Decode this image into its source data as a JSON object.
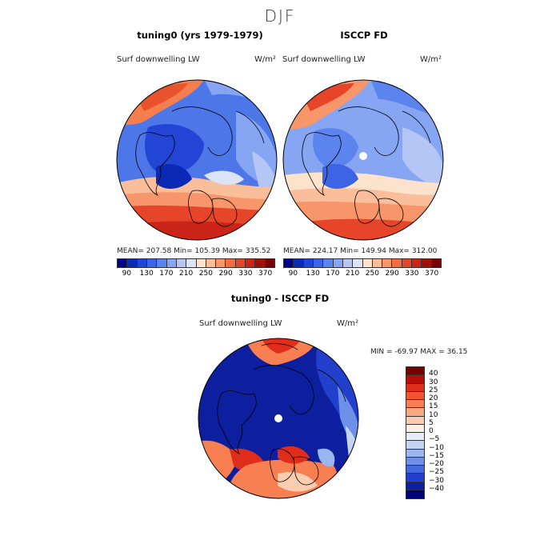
{
  "figure": {
    "season": "DJF",
    "panels": [
      {
        "title": "tuning0 (yrs 1979-1979)",
        "field_label": "Surf downwelling LW",
        "units": "W/m²",
        "stats": "MEAN= 207.58   Min= 105.39   Max= 335.52"
      },
      {
        "title": "ISCCP FD",
        "field_label": "Surf downwelling LW",
        "units": "W/m²",
        "stats": "MEAN= 224.17   Min= 149.94   Max= 312.00"
      }
    ],
    "abs_colorbar": {
      "colors": [
        "#00008b",
        "#0a2ab5",
        "#2345d6",
        "#3d64e6",
        "#5c84ee",
        "#86a5f2",
        "#b3c6f5",
        "#dbe4f7",
        "#fde2cc",
        "#fbbe9b",
        "#f8966b",
        "#f26b42",
        "#e6452a",
        "#cc2419",
        "#a00f0a",
        "#7a0000"
      ],
      "labels": [
        "90",
        "130",
        "170",
        "210",
        "250",
        "290",
        "330",
        "370"
      ]
    },
    "diff_panel": {
      "title": "tuning0 - ISCCP FD",
      "field_label": "Surf downwelling LW",
      "units": "W/m²",
      "stats": "MIN = -69.97 MAX =  36.15"
    },
    "diff_colorbar": {
      "colors": [
        "#7a0000",
        "#b40d0a",
        "#e02d1a",
        "#f2552f",
        "#f77f52",
        "#f9a77f",
        "#fbcdb0",
        "#fdf0e6",
        "#e6edf8",
        "#c4d4f3",
        "#9bb5ee",
        "#6f90e8",
        "#4468de",
        "#2240cc",
        "#0d1f9e",
        "#00007a"
      ],
      "labels": [
        "40",
        "30",
        "25",
        "20",
        "15",
        "10",
        "5",
        "0",
        "−5",
        "−10",
        "−15",
        "−20",
        "−25",
        "−30",
        "−40"
      ]
    }
  }
}
